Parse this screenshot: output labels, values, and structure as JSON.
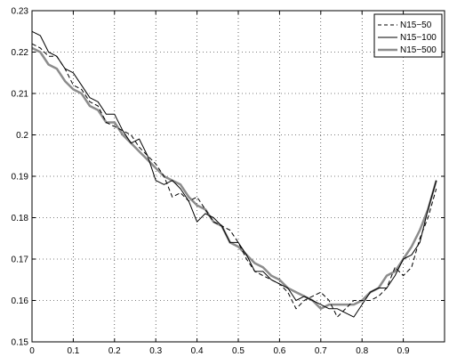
{
  "chart_data": {
    "type": "line",
    "title": "",
    "xlabel": "",
    "ylabel": "",
    "xlim": [
      0,
      1
    ],
    "ylim": [
      0.15,
      0.23
    ],
    "grid": true,
    "legend_position": "top-right",
    "x_ticks": [
      "0",
      "0.1",
      "0.2",
      "0.3",
      "0.4",
      "0.5",
      "0.6",
      "0.7",
      "0.8",
      "0.9"
    ],
    "y_ticks": [
      "0.15",
      "0.16",
      "0.17",
      "0.18",
      "0.19",
      "0.2",
      "0.21",
      "0.22",
      "0.23"
    ],
    "x_tick_values": [
      0,
      0.1,
      0.2,
      0.3,
      0.4,
      0.5,
      0.6,
      0.7,
      0.8,
      0.9
    ],
    "y_tick_values": [
      0.15,
      0.16,
      0.17,
      0.18,
      0.19,
      0.2,
      0.21,
      0.22,
      0.23
    ],
    "series": [
      {
        "name": "N15−50",
        "style": "dashed",
        "color": "#000000",
        "x": [
          0,
          0.02,
          0.04,
          0.06,
          0.08,
          0.1,
          0.12,
          0.14,
          0.16,
          0.18,
          0.2,
          0.22,
          0.24,
          0.26,
          0.28,
          0.3,
          0.32,
          0.34,
          0.36,
          0.38,
          0.4,
          0.42,
          0.44,
          0.46,
          0.48,
          0.5,
          0.52,
          0.54,
          0.56,
          0.58,
          0.6,
          0.62,
          0.64,
          0.66,
          0.68,
          0.7,
          0.72,
          0.74,
          0.76,
          0.78,
          0.8,
          0.82,
          0.84,
          0.86,
          0.88,
          0.9,
          0.92,
          0.94,
          0.96,
          0.98
        ],
        "y": [
          0.222,
          0.221,
          0.219,
          0.219,
          0.216,
          0.212,
          0.211,
          0.208,
          0.207,
          0.203,
          0.202,
          0.201,
          0.2,
          0.197,
          0.195,
          0.193,
          0.19,
          0.185,
          0.186,
          0.184,
          0.185,
          0.182,
          0.179,
          0.178,
          0.177,
          0.174,
          0.17,
          0.167,
          0.166,
          0.165,
          0.164,
          0.162,
          0.158,
          0.16,
          0.161,
          0.162,
          0.16,
          0.156,
          0.158,
          0.16,
          0.16,
          0.16,
          0.161,
          0.163,
          0.168,
          0.166,
          0.168,
          0.175,
          0.18,
          0.187
        ]
      },
      {
        "name": "N15−100",
        "style": "solid",
        "color": "#000000",
        "x": [
          0,
          0.02,
          0.04,
          0.06,
          0.08,
          0.1,
          0.12,
          0.14,
          0.16,
          0.18,
          0.2,
          0.22,
          0.24,
          0.26,
          0.28,
          0.3,
          0.32,
          0.34,
          0.36,
          0.38,
          0.4,
          0.42,
          0.44,
          0.46,
          0.48,
          0.5,
          0.52,
          0.54,
          0.56,
          0.58,
          0.6,
          0.62,
          0.64,
          0.66,
          0.68,
          0.7,
          0.72,
          0.74,
          0.76,
          0.78,
          0.8,
          0.82,
          0.84,
          0.86,
          0.88,
          0.9,
          0.92,
          0.94,
          0.96,
          0.98
        ],
        "y": [
          0.225,
          0.224,
          0.22,
          0.219,
          0.216,
          0.215,
          0.212,
          0.209,
          0.208,
          0.205,
          0.205,
          0.201,
          0.198,
          0.199,
          0.195,
          0.189,
          0.188,
          0.189,
          0.187,
          0.184,
          0.179,
          0.181,
          0.18,
          0.178,
          0.174,
          0.174,
          0.171,
          0.167,
          0.167,
          0.165,
          0.164,
          0.163,
          0.16,
          0.161,
          0.16,
          0.159,
          0.158,
          0.158,
          0.157,
          0.156,
          0.159,
          0.162,
          0.163,
          0.163,
          0.166,
          0.17,
          0.171,
          0.174,
          0.182,
          0.189
        ]
      },
      {
        "name": "N15−500",
        "style": "thick",
        "color": "#8c8c8c",
        "x": [
          0,
          0.02,
          0.04,
          0.06,
          0.08,
          0.1,
          0.12,
          0.14,
          0.16,
          0.18,
          0.2,
          0.22,
          0.24,
          0.26,
          0.28,
          0.3,
          0.32,
          0.34,
          0.36,
          0.38,
          0.4,
          0.42,
          0.44,
          0.46,
          0.48,
          0.5,
          0.52,
          0.54,
          0.56,
          0.58,
          0.6,
          0.62,
          0.64,
          0.66,
          0.68,
          0.7,
          0.72,
          0.74,
          0.76,
          0.78,
          0.8,
          0.82,
          0.84,
          0.86,
          0.88,
          0.9,
          0.92,
          0.94,
          0.96,
          0.98
        ],
        "y": [
          0.221,
          0.22,
          0.217,
          0.216,
          0.213,
          0.211,
          0.21,
          0.207,
          0.206,
          0.203,
          0.203,
          0.2,
          0.198,
          0.196,
          0.194,
          0.192,
          0.19,
          0.189,
          0.188,
          0.185,
          0.183,
          0.182,
          0.179,
          0.178,
          0.174,
          0.173,
          0.171,
          0.169,
          0.168,
          0.166,
          0.165,
          0.163,
          0.162,
          0.161,
          0.16,
          0.158,
          0.159,
          0.159,
          0.159,
          0.159,
          0.16,
          0.162,
          0.163,
          0.166,
          0.167,
          0.17,
          0.173,
          0.177,
          0.182,
          0.189
        ]
      }
    ]
  }
}
